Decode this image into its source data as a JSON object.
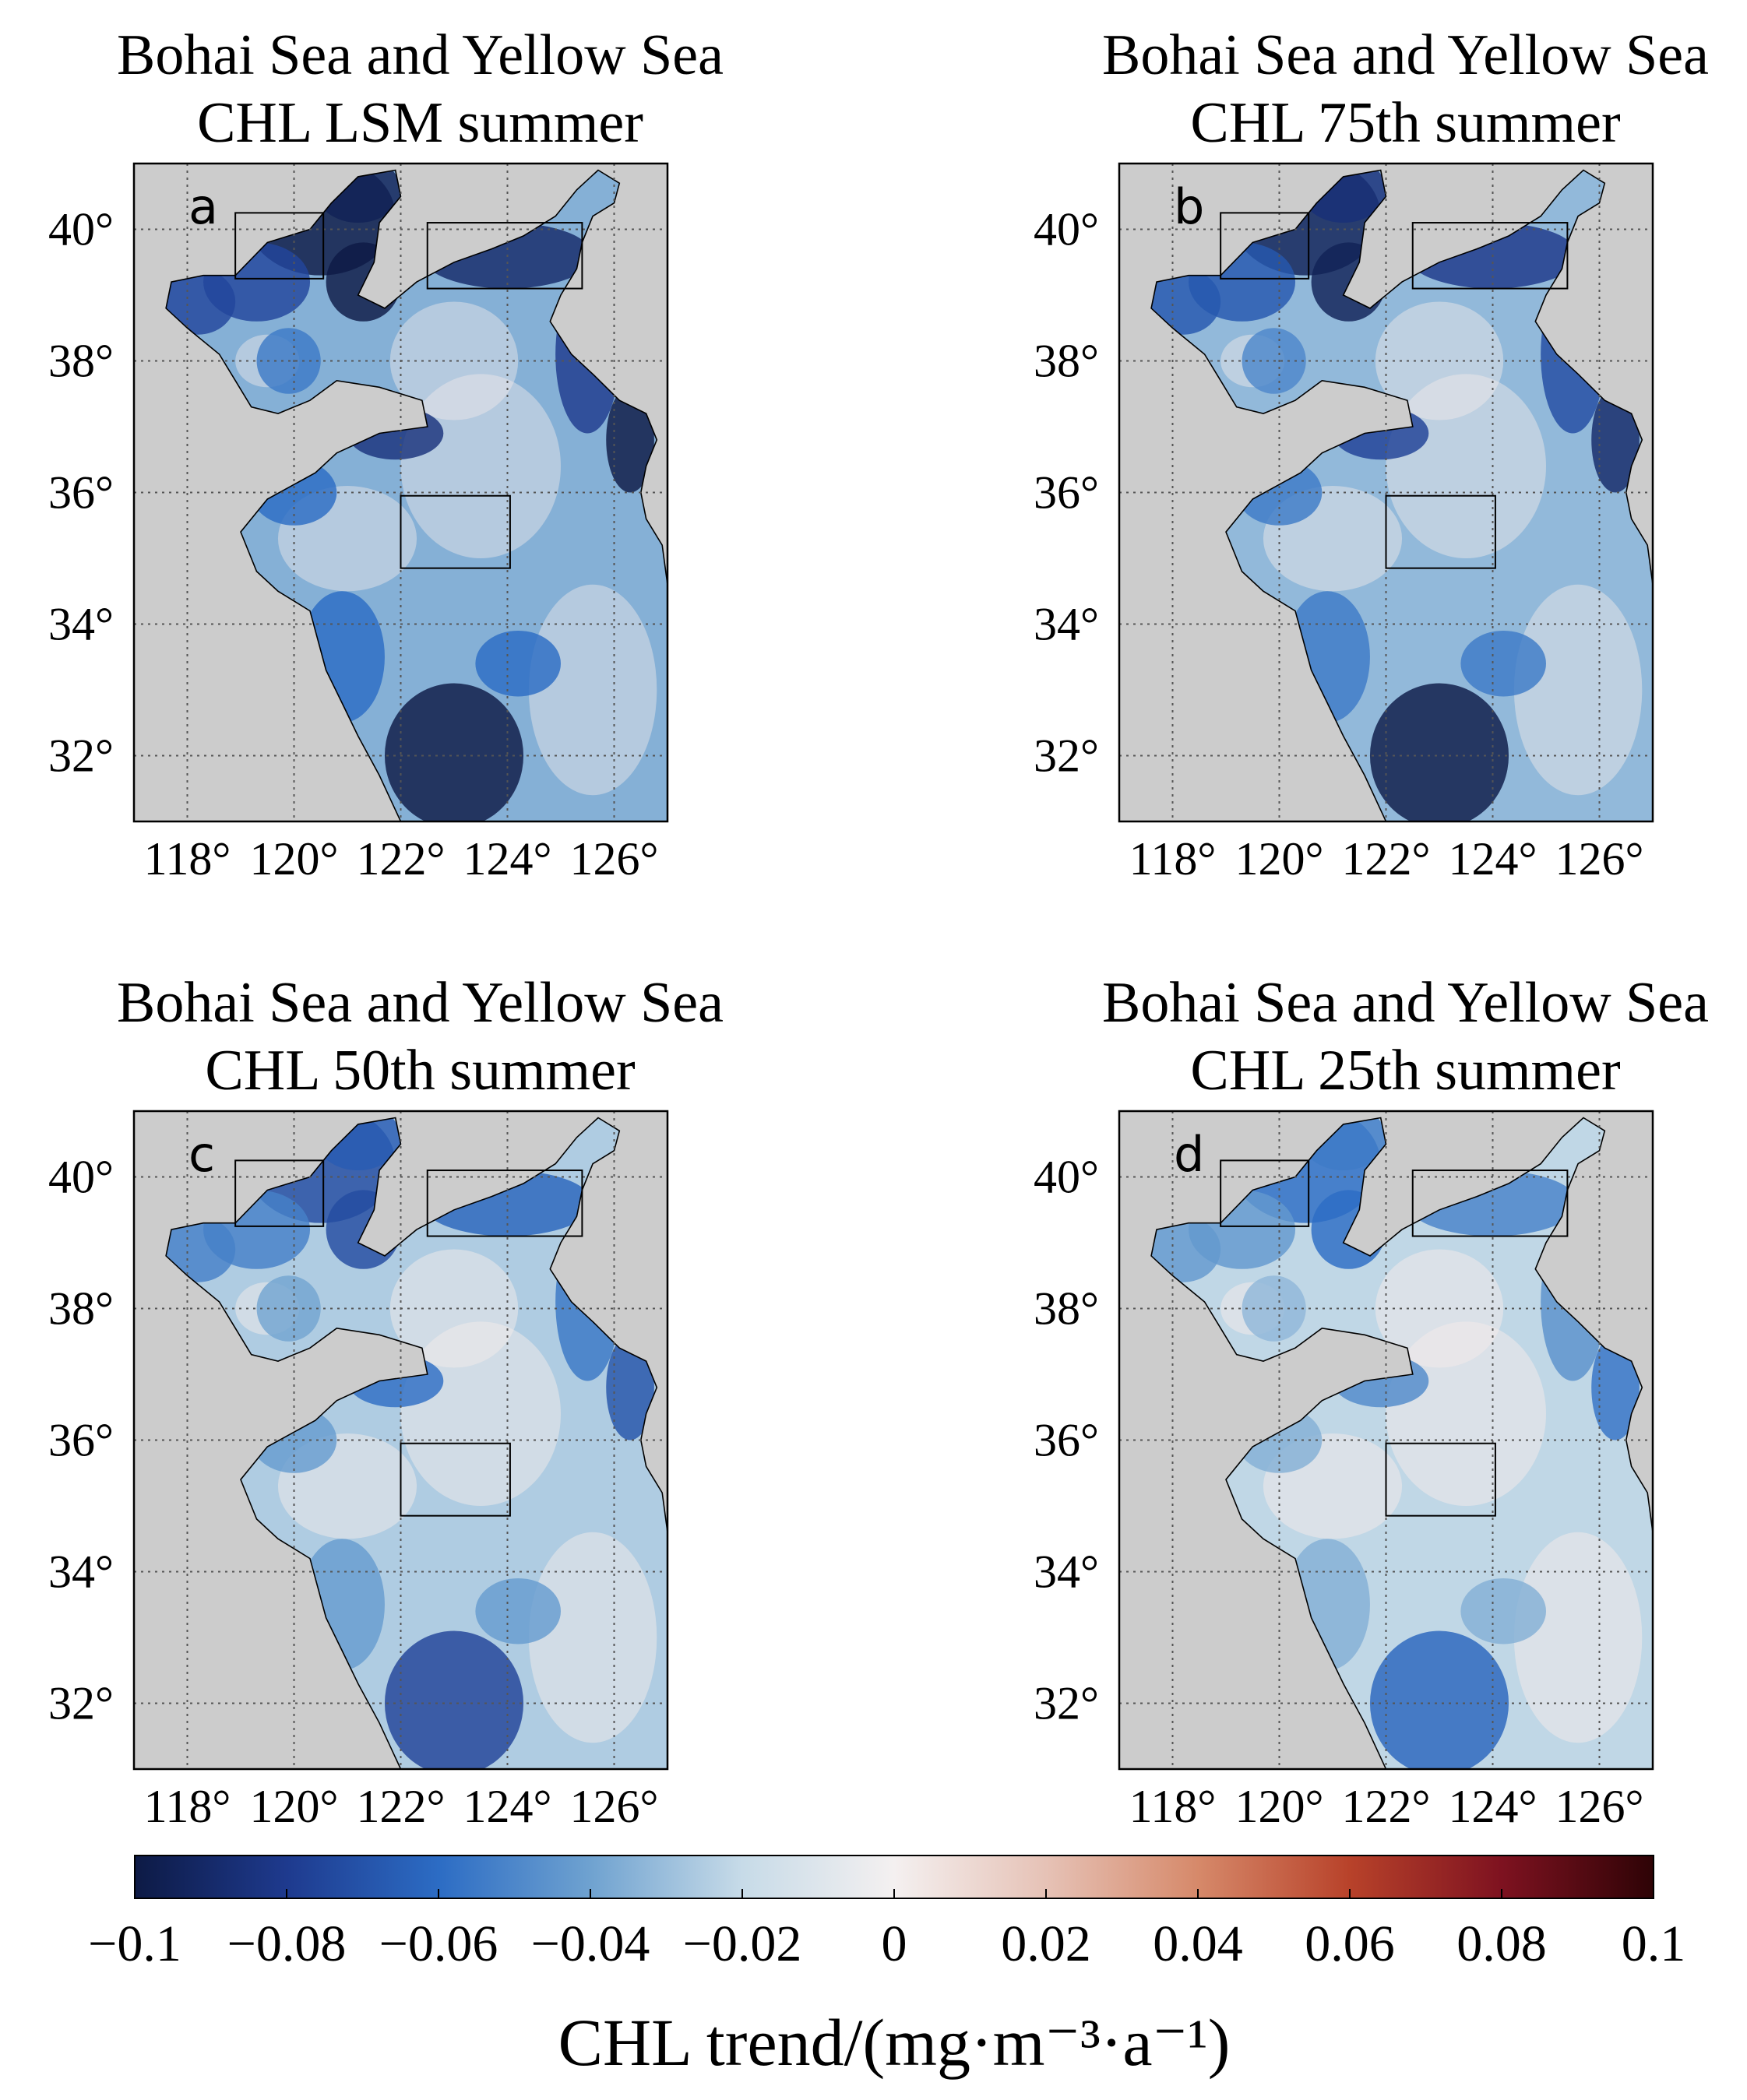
{
  "colors": {
    "land": "#cccccc",
    "grid": "#555555",
    "frame": "#000000",
    "colormap": [
      "#0d1a45",
      "#1e3a8e",
      "#2c6cc4",
      "#6fa2d0",
      "#c7dbe8",
      "#f4f0f0",
      "#e6c2b6",
      "#d6896a",
      "#b8422a",
      "#7e1220",
      "#2e0306"
    ]
  },
  "panels": [
    {
      "id": "a",
      "label": "a",
      "title_line1": "Bohai Sea and Yellow Sea",
      "title_line2": "CHL LSM summer",
      "statistic": "LSM",
      "intensity": 1.0
    },
    {
      "id": "b",
      "label": "b",
      "title_line1": "Bohai Sea and Yellow Sea",
      "title_line2": "CHL 75th summer",
      "statistic": "75th",
      "intensity": 0.9
    },
    {
      "id": "c",
      "label": "c",
      "title_line1": "Bohai Sea and Yellow Sea",
      "title_line2": "CHL 50th summer",
      "statistic": "50th",
      "intensity": 0.68
    },
    {
      "id": "d",
      "label": "d",
      "title_line1": "Bohai Sea and Yellow Sea",
      "title_line2": "CHL 25th summer",
      "statistic": "25th",
      "intensity": 0.55
    }
  ],
  "map": {
    "lon_range": [
      117,
      127
    ],
    "lat_range": [
      31,
      41
    ],
    "lon_ticks": [
      {
        "value": 118,
        "label": "118°"
      },
      {
        "value": 120,
        "label": "120°"
      },
      {
        "value": 122,
        "label": "122°"
      },
      {
        "value": 124,
        "label": "124°"
      },
      {
        "value": 126,
        "label": "126°"
      }
    ],
    "lat_ticks": [
      {
        "value": 40,
        "label": "40°"
      },
      {
        "value": 38,
        "label": "38°"
      },
      {
        "value": 36,
        "label": "36°"
      },
      {
        "value": 34,
        "label": "34°"
      },
      {
        "value": 32,
        "label": "32°"
      }
    ],
    "grid": true,
    "study_boxes": [
      {
        "name": "box-bohai-west",
        "lon": [
          118.9,
          120.55
        ],
        "lat": [
          39.25,
          40.25
        ]
      },
      {
        "name": "box-north-yellow-sea",
        "lon": [
          122.5,
          125.4
        ],
        "lat": [
          39.1,
          40.1
        ]
      },
      {
        "name": "box-central-yellow-sea",
        "lon": [
          122.0,
          124.05
        ],
        "lat": [
          34.85,
          35.95
        ]
      }
    ]
  },
  "colorbar": {
    "range": [
      -0.1,
      0.1
    ],
    "ticks": [
      {
        "value": -0.1,
        "label": "−0.1"
      },
      {
        "value": -0.08,
        "label": "−0.08"
      },
      {
        "value": -0.06,
        "label": "−0.06"
      },
      {
        "value": -0.04,
        "label": "−0.04"
      },
      {
        "value": -0.02,
        "label": "−0.02"
      },
      {
        "value": 0,
        "label": "0"
      },
      {
        "value": 0.02,
        "label": "0.02"
      },
      {
        "value": 0.04,
        "label": "0.04"
      },
      {
        "value": 0.06,
        "label": "0.06"
      },
      {
        "value": 0.08,
        "label": "0.08"
      },
      {
        "value": 0.1,
        "label": "0.1"
      }
    ],
    "label": "CHL trend/(mg·m⁻³·a⁻¹)"
  }
}
